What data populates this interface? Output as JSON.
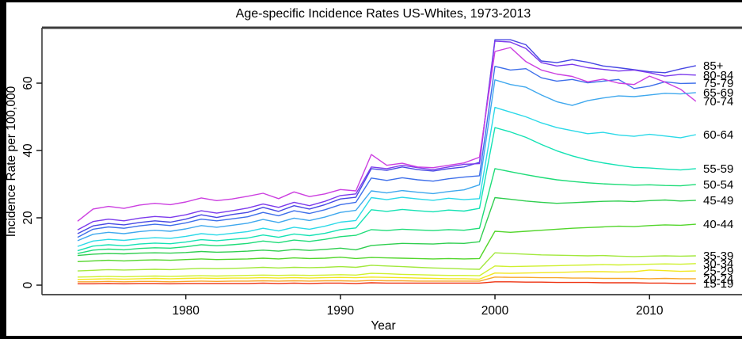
{
  "chart_data": {
    "type": "line",
    "title": "Age-specific Incidence Rates US-Whites, 1973-2013",
    "xlabel": "Year",
    "ylabel": "Incidence Rate per 100,000",
    "x_ticks": [
      1980,
      1990,
      2000,
      2010
    ],
    "y_ticks": [
      0,
      20,
      40,
      60
    ],
    "xlim": [
      1973,
      2013
    ],
    "ylim": [
      0,
      75
    ],
    "grid": false,
    "legend_position": "right-margin-line-end-labels",
    "years": [
      1973,
      1974,
      1975,
      1976,
      1977,
      1978,
      1979,
      1980,
      1981,
      1982,
      1983,
      1984,
      1985,
      1986,
      1987,
      1988,
      1989,
      1990,
      1991,
      1992,
      1993,
      1994,
      1995,
      1996,
      1997,
      1998,
      1999,
      2000,
      2001,
      2002,
      2003,
      2004,
      2005,
      2006,
      2007,
      2008,
      2009,
      2010,
      2011,
      2012,
      2013
    ],
    "series": [
      {
        "name": "85+",
        "color": "#4747E3",
        "values": [
          15.3,
          17.6,
          18.3,
          17.9,
          18.6,
          19.1,
          18.7,
          19.6,
          20.9,
          20.1,
          21.0,
          21.6,
          23.1,
          21.9,
          23.6,
          22.6,
          23.9,
          25.6,
          26.1,
          34.6,
          34.1,
          35.1,
          34.3,
          33.9,
          34.6,
          35.1,
          36.5,
          72.9,
          72.9,
          71.4,
          66.6,
          66.1,
          67.0,
          66.2,
          65.1,
          64.6,
          64.0,
          63.4,
          63.1,
          64.2,
          65.2
        ]
      },
      {
        "name": "80-84",
        "color": "#7C3AEC",
        "values": [
          16.4,
          18.9,
          19.6,
          19.1,
          19.9,
          20.4,
          20.1,
          20.9,
          22.1,
          21.4,
          22.1,
          22.9,
          24.1,
          23.1,
          24.6,
          23.6,
          24.9,
          26.6,
          27.1,
          35.1,
          34.6,
          35.6,
          34.9,
          34.3,
          35.1,
          35.9,
          36.1,
          72.5,
          72.2,
          70.3,
          66.1,
          65.1,
          65.6,
          64.6,
          64.1,
          63.6,
          63.9,
          63.1,
          62.1,
          62.6,
          62.4
        ]
      },
      {
        "name": "75-79",
        "color": "#3E6FEA",
        "values": [
          14.2,
          16.6,
          17.3,
          16.9,
          17.6,
          18.1,
          17.7,
          18.5,
          19.6,
          19.1,
          19.7,
          20.3,
          21.6,
          20.6,
          22.1,
          21.3,
          22.4,
          23.9,
          24.6,
          31.8,
          31.1,
          31.9,
          31.3,
          30.9,
          31.6,
          32.1,
          32.5,
          65.0,
          63.9,
          64.3,
          61.6,
          60.6,
          61.1,
          60.1,
          60.6,
          61.1,
          58.4,
          59.1,
          60.4,
          59.9,
          60.0
        ]
      },
      {
        "name": "70-74",
        "color": "#CC3FE0",
        "values": [
          19.0,
          22.6,
          23.4,
          22.8,
          23.8,
          24.3,
          23.9,
          24.7,
          25.9,
          25.1,
          25.6,
          26.4,
          27.3,
          25.7,
          27.7,
          26.3,
          27.1,
          28.4,
          28.0,
          38.8,
          35.6,
          36.2,
          35.1,
          34.9,
          35.6,
          36.3,
          38.0,
          69.4,
          70.6,
          66.4,
          63.9,
          62.7,
          62.0,
          60.4,
          61.2,
          60.0,
          59.6,
          62.1,
          60.3,
          58.2,
          54.6
        ]
      },
      {
        "name": "65-69",
        "color": "#3FA8EE",
        "values": [
          13.2,
          15.1,
          15.7,
          15.3,
          15.9,
          16.3,
          16.0,
          16.7,
          17.7,
          17.2,
          17.8,
          18.4,
          19.5,
          18.6,
          19.9,
          19.2,
          20.2,
          21.6,
          22.2,
          28.0,
          27.4,
          28.1,
          27.6,
          27.2,
          27.8,
          28.3,
          29.8,
          61.0,
          59.6,
          58.8,
          56.5,
          54.5,
          53.4,
          54.8,
          55.6,
          56.2,
          56.0,
          56.5,
          57.0,
          56.8,
          57.2
        ]
      },
      {
        "name": "60-64",
        "color": "#2BD9E8",
        "values": [
          11.5,
          13.1,
          13.6,
          13.3,
          13.8,
          14.1,
          13.9,
          14.5,
          15.3,
          14.9,
          15.4,
          15.9,
          16.9,
          16.1,
          17.2,
          16.6,
          17.5,
          18.7,
          19.2,
          26.0,
          25.4,
          26.1,
          25.6,
          25.2,
          25.8,
          25.4,
          25.7,
          52.8,
          51.4,
          50.0,
          48.2,
          46.8,
          45.9,
          45.0,
          45.4,
          44.6,
          44.2,
          44.8,
          44.3,
          43.8,
          44.7
        ]
      },
      {
        "name": "55-59",
        "color": "#14E2B4",
        "values": [
          10.2,
          11.6,
          12.0,
          11.7,
          12.2,
          12.5,
          12.3,
          12.8,
          13.5,
          13.2,
          13.6,
          14.0,
          14.9,
          14.2,
          15.2,
          14.7,
          15.4,
          16.5,
          17.0,
          22.4,
          21.9,
          22.5,
          22.1,
          21.8,
          22.3,
          22.0,
          22.8,
          46.8,
          45.5,
          43.9,
          41.8,
          39.9,
          38.4,
          37.2,
          36.3,
          35.6,
          35.0,
          34.8,
          34.5,
          34.2,
          34.6
        ]
      },
      {
        "name": "50-54",
        "color": "#1EDC78",
        "values": [
          9.4,
          10.4,
          10.7,
          10.5,
          10.9,
          11.1,
          11.0,
          11.4,
          12.0,
          11.7,
          12.0,
          12.4,
          13.1,
          12.6,
          13.4,
          13.0,
          13.6,
          14.4,
          14.8,
          16.5,
          16.2,
          16.6,
          16.4,
          16.2,
          16.5,
          16.3,
          16.9,
          34.6,
          33.7,
          32.8,
          32.0,
          31.3,
          30.8,
          30.4,
          30.1,
          29.9,
          29.7,
          29.8,
          29.6,
          29.5,
          29.9
        ]
      },
      {
        "name": "45-49",
        "color": "#2FCE4F",
        "values": [
          8.8,
          9.2,
          9.4,
          9.3,
          9.5,
          9.6,
          9.5,
          9.7,
          10.0,
          9.8,
          9.9,
          10.1,
          10.4,
          10.1,
          10.6,
          10.3,
          10.6,
          11.0,
          10.5,
          11.8,
          12.1,
          12.4,
          12.3,
          12.2,
          12.5,
          12.4,
          12.9,
          26.0,
          25.5,
          25.0,
          24.6,
          24.3,
          24.5,
          24.7,
          24.9,
          25.0,
          24.8,
          25.1,
          25.3,
          25.0,
          25.2
        ]
      },
      {
        "name": "40-44",
        "color": "#52D52A",
        "values": [
          7.0,
          7.2,
          7.4,
          7.2,
          7.4,
          7.5,
          7.4,
          7.6,
          7.8,
          7.6,
          7.7,
          7.8,
          8.0,
          7.8,
          8.1,
          7.9,
          8.0,
          8.3,
          7.9,
          8.2,
          8.1,
          8.0,
          7.9,
          7.8,
          7.9,
          7.8,
          7.9,
          16.0,
          15.7,
          16.0,
          16.3,
          16.6,
          16.9,
          17.1,
          17.3,
          17.5,
          17.4,
          17.7,
          17.9,
          17.8,
          18.1
        ]
      },
      {
        "name": "35-39",
        "color": "#A2E83C",
        "values": [
          4.2,
          4.4,
          4.6,
          4.5,
          4.6,
          4.7,
          4.6,
          4.8,
          5.0,
          4.9,
          5.0,
          5.1,
          5.3,
          5.1,
          5.3,
          5.2,
          5.3,
          5.5,
          5.3,
          5.9,
          5.7,
          5.5,
          5.3,
          5.1,
          5.0,
          4.8,
          4.7,
          9.6,
          9.4,
          9.2,
          9.0,
          8.9,
          8.8,
          8.7,
          8.8,
          8.6,
          8.5,
          8.6,
          8.7,
          8.6,
          8.7
        ]
      },
      {
        "name": "30-34",
        "color": "#CFF02F",
        "values": [
          2.4,
          2.5,
          2.6,
          2.5,
          2.6,
          2.7,
          2.6,
          2.7,
          2.8,
          2.7,
          2.8,
          2.9,
          3.0,
          2.9,
          3.0,
          2.9,
          3.0,
          3.1,
          3.0,
          3.5,
          3.4,
          3.2,
          3.1,
          3.0,
          2.9,
          2.9,
          2.8,
          5.7,
          5.5,
          5.6,
          5.7,
          5.8,
          5.9,
          6.0,
          6.1,
          6.0,
          6.1,
          6.2,
          6.3,
          6.2,
          6.4
        ]
      },
      {
        "name": "25-29",
        "color": "#F2E71E",
        "values": [
          1.7,
          1.8,
          1.9,
          1.8,
          1.9,
          2.0,
          1.9,
          2.0,
          2.1,
          2.0,
          2.1,
          2.1,
          2.2,
          2.1,
          2.2,
          2.1,
          2.2,
          2.3,
          2.2,
          2.4,
          2.3,
          2.2,
          2.1,
          2.0,
          1.9,
          1.9,
          1.8,
          3.6,
          3.5,
          3.6,
          3.7,
          3.8,
          3.9,
          4.0,
          4.0,
          3.9,
          4.0,
          4.5,
          4.3,
          4.1,
          4.2
        ]
      },
      {
        "name": "20-24",
        "color": "#F8A62B",
        "values": [
          1.0,
          1.0,
          1.1,
          1.0,
          1.1,
          1.1,
          1.0,
          1.1,
          1.2,
          1.1,
          1.2,
          1.2,
          1.3,
          1.2,
          1.3,
          1.2,
          1.3,
          1.3,
          1.2,
          1.4,
          1.3,
          1.3,
          1.2,
          1.2,
          1.2,
          1.2,
          1.2,
          2.4,
          2.3,
          2.3,
          2.2,
          2.2,
          2.1,
          2.1,
          2.0,
          2.0,
          2.0,
          1.9,
          2.0,
          1.9,
          1.9
        ]
      },
      {
        "name": "15-19",
        "color": "#EE3311",
        "values": [
          0.4,
          0.4,
          0.5,
          0.4,
          0.5,
          0.5,
          0.4,
          0.5,
          0.5,
          0.5,
          0.5,
          0.5,
          0.6,
          0.5,
          0.6,
          0.5,
          0.6,
          0.6,
          0.5,
          0.7,
          0.6,
          0.6,
          0.6,
          0.6,
          0.6,
          0.6,
          0.6,
          1.0,
          1.0,
          0.9,
          0.9,
          0.8,
          0.8,
          0.8,
          0.7,
          0.7,
          0.7,
          0.6,
          0.6,
          0.5,
          0.5
        ]
      }
    ]
  }
}
